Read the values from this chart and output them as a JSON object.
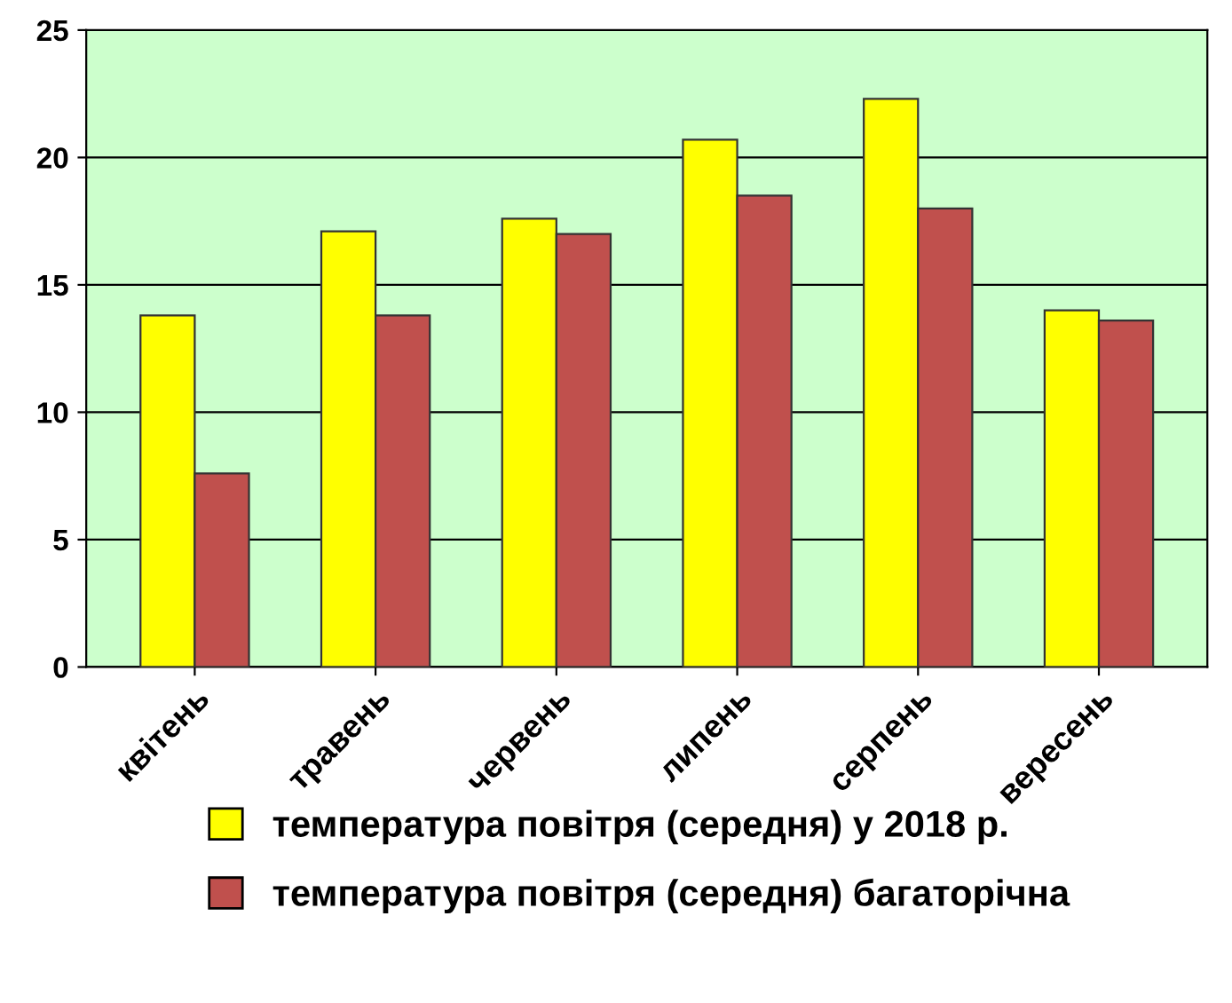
{
  "chart_data": {
    "type": "bar",
    "categories": [
      "квітень",
      "травень",
      "червень",
      "липень",
      "серпень",
      "вересень"
    ],
    "series": [
      {
        "name": "температура повітря (середня) у 2018 р.",
        "color": "#ffff00",
        "values": [
          13.8,
          17.1,
          17.6,
          20.7,
          22.3,
          14.0
        ]
      },
      {
        "name": "температура повітря (середня) багаторічна",
        "color": "#c0504d",
        "values": [
          7.6,
          13.8,
          17.0,
          18.5,
          18.0,
          13.6
        ]
      }
    ],
    "ylim": [
      0,
      25
    ],
    "yticks": [
      0,
      5,
      10,
      15,
      20,
      25
    ],
    "grid": "y",
    "legend": "bottom"
  }
}
